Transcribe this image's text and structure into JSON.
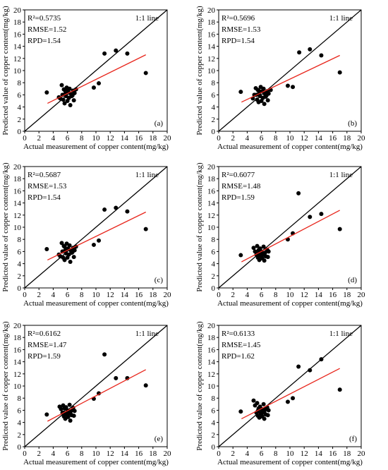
{
  "chart_data": [
    {
      "type": "scatter",
      "label": "(a)",
      "xlabel": "Actual measurement of copper content(mg/kg)",
      "ylabel": "Predicted value of copper content(mg/kg)",
      "xlim": [
        0,
        20
      ],
      "ylim": [
        0,
        20
      ],
      "xticks": [
        0,
        2,
        4,
        6,
        8,
        10,
        12,
        14,
        16,
        18,
        20
      ],
      "yticks": [
        0,
        2,
        4,
        6,
        8,
        10,
        12,
        14,
        16,
        18,
        20
      ],
      "identity_label": "1:1 line",
      "stats": {
        "r2": "R²=0.5735",
        "rmse": "RMSE=1.52",
        "rpd": "RPD=1.54"
      },
      "fit": {
        "x": [
          3.2,
          17.0
        ],
        "y": [
          4.6,
          12.6
        ]
      },
      "points": [
        [
          3.1,
          6.4
        ],
        [
          4.8,
          5.6
        ],
        [
          5.0,
          5.4
        ],
        [
          5.2,
          7.6
        ],
        [
          5.4,
          5.2
        ],
        [
          5.5,
          6.9
        ],
        [
          5.6,
          4.6
        ],
        [
          5.7,
          6.2
        ],
        [
          5.8,
          5.8
        ],
        [
          5.9,
          7.2
        ],
        [
          6.0,
          5.0
        ],
        [
          6.1,
          6.6
        ],
        [
          6.2,
          5.5
        ],
        [
          6.3,
          7.0
        ],
        [
          6.4,
          4.3
        ],
        [
          6.5,
          6.1
        ],
        [
          6.6,
          5.8
        ],
        [
          6.8,
          6.7
        ],
        [
          6.9,
          5.1
        ],
        [
          7.0,
          6.3
        ],
        [
          5.3,
          6.0
        ],
        [
          5.6,
          6.8
        ],
        [
          6.7,
          5.9
        ],
        [
          7.2,
          6.9
        ],
        [
          9.7,
          7.2
        ],
        [
          10.4,
          7.9
        ],
        [
          11.2,
          12.8
        ],
        [
          12.8,
          13.3
        ],
        [
          14.4,
          12.8
        ],
        [
          17.0,
          9.6
        ]
      ]
    },
    {
      "type": "scatter",
      "label": "(b)",
      "xlabel": "Actual measurement of copper content(mg/kg)",
      "ylabel": "Predicted value of copper content(mg/kg)",
      "xlim": [
        0,
        20
      ],
      "ylim": [
        0,
        20
      ],
      "xticks": [
        0,
        2,
        4,
        6,
        8,
        10,
        12,
        14,
        16,
        18,
        20
      ],
      "yticks": [
        0,
        2,
        4,
        6,
        8,
        10,
        12,
        14,
        16,
        18,
        20
      ],
      "identity_label": "1:1 line",
      "stats": {
        "r2": "R²=0.5696",
        "rmse": "RMSE=1.53",
        "rpd": "RPD=1.54"
      },
      "fit": {
        "x": [
          3.2,
          17.0
        ],
        "y": [
          4.8,
          12.5
        ]
      },
      "points": [
        [
          3.1,
          6.5
        ],
        [
          4.8,
          5.4
        ],
        [
          5.0,
          6.0
        ],
        [
          5.2,
          7.1
        ],
        [
          5.4,
          5.2
        ],
        [
          5.5,
          6.8
        ],
        [
          5.6,
          4.8
        ],
        [
          5.7,
          6.3
        ],
        [
          5.8,
          5.8
        ],
        [
          5.9,
          7.3
        ],
        [
          6.0,
          5.0
        ],
        [
          6.1,
          6.6
        ],
        [
          6.2,
          5.5
        ],
        [
          6.3,
          7.0
        ],
        [
          6.4,
          4.5
        ],
        [
          6.5,
          6.1
        ],
        [
          6.6,
          5.7
        ],
        [
          6.8,
          6.6
        ],
        [
          6.9,
          5.1
        ],
        [
          7.0,
          6.2
        ],
        [
          5.3,
          6.0
        ],
        [
          5.6,
          6.7
        ],
        [
          6.7,
          5.9
        ],
        [
          7.3,
          6.8
        ],
        [
          9.7,
          7.5
        ],
        [
          10.4,
          7.3
        ],
        [
          11.3,
          13.0
        ],
        [
          12.8,
          13.5
        ],
        [
          14.4,
          12.5
        ],
        [
          17.0,
          9.7
        ]
      ]
    },
    {
      "type": "scatter",
      "label": "(c)",
      "xlabel": "Actual measurement of copper content(mg/kg)",
      "ylabel": "Predicted value of copper content(mg/kg)",
      "xlim": [
        0,
        20
      ],
      "ylim": [
        0,
        20
      ],
      "xticks": [
        0,
        2,
        4,
        6,
        8,
        10,
        12,
        14,
        16,
        18,
        20
      ],
      "yticks": [
        0,
        2,
        4,
        6,
        8,
        10,
        12,
        14,
        16,
        18,
        20
      ],
      "identity_label": "1:1 line",
      "stats": {
        "r2": "R²=0.5687",
        "rmse": "RMSE=1.53",
        "rpd": "RPD=1.54"
      },
      "fit": {
        "x": [
          3.2,
          17.0
        ],
        "y": [
          4.6,
          12.5
        ]
      },
      "points": [
        [
          3.1,
          6.4
        ],
        [
          4.8,
          5.5
        ],
        [
          5.0,
          5.2
        ],
        [
          5.2,
          7.4
        ],
        [
          5.4,
          5.0
        ],
        [
          5.5,
          6.9
        ],
        [
          5.6,
          4.6
        ],
        [
          5.7,
          6.2
        ],
        [
          5.8,
          5.7
        ],
        [
          5.9,
          7.3
        ],
        [
          6.0,
          5.0
        ],
        [
          6.1,
          6.5
        ],
        [
          6.2,
          5.5
        ],
        [
          6.3,
          7.0
        ],
        [
          6.4,
          4.3
        ],
        [
          6.5,
          6.1
        ],
        [
          6.6,
          5.8
        ],
        [
          6.8,
          6.6
        ],
        [
          6.9,
          5.1
        ],
        [
          7.0,
          6.2
        ],
        [
          5.3,
          6.0
        ],
        [
          5.6,
          6.8
        ],
        [
          6.7,
          5.9
        ],
        [
          7.2,
          6.8
        ],
        [
          9.7,
          7.1
        ],
        [
          10.4,
          7.8
        ],
        [
          11.2,
          12.9
        ],
        [
          12.8,
          13.2
        ],
        [
          14.4,
          12.6
        ],
        [
          17.0,
          9.7
        ]
      ]
    },
    {
      "type": "scatter",
      "label": "(d)",
      "xlabel": "Actual measurement of copper content(mg/kg)",
      "ylabel": "Predicted value of copper content(mg/kg)",
      "xlim": [
        0,
        20
      ],
      "ylim": [
        0,
        20
      ],
      "xticks": [
        0,
        2,
        4,
        6,
        8,
        10,
        12,
        14,
        16,
        18,
        20
      ],
      "yticks": [
        0,
        2,
        4,
        6,
        8,
        10,
        12,
        14,
        16,
        18,
        20
      ],
      "identity_label": "1:1 line",
      "stats": {
        "r2": "R²=0.6077",
        "rmse": "RMSE=1.48",
        "rpd": "RPD=1.59"
      },
      "fit": {
        "x": [
          3.2,
          17.0
        ],
        "y": [
          4.3,
          12.8
        ]
      },
      "points": [
        [
          3.1,
          5.4
        ],
        [
          4.9,
          6.6
        ],
        [
          5.1,
          6.0
        ],
        [
          5.3,
          5.5
        ],
        [
          5.4,
          6.9
        ],
        [
          5.5,
          5.0
        ],
        [
          5.6,
          6.2
        ],
        [
          5.7,
          4.6
        ],
        [
          5.8,
          6.5
        ],
        [
          5.9,
          5.4
        ],
        [
          6.0,
          6.0
        ],
        [
          6.1,
          4.9
        ],
        [
          6.2,
          5.7
        ],
        [
          6.3,
          6.8
        ],
        [
          6.4,
          4.5
        ],
        [
          6.5,
          5.8
        ],
        [
          6.6,
          5.2
        ],
        [
          6.8,
          6.3
        ],
        [
          6.9,
          5.1
        ],
        [
          7.0,
          6.0
        ],
        [
          5.5,
          5.6
        ],
        [
          6.0,
          5.2
        ],
        [
          6.4,
          5.5
        ],
        [
          9.7,
          8.0
        ],
        [
          10.4,
          9.0
        ],
        [
          11.2,
          15.6
        ],
        [
          12.8,
          11.7
        ],
        [
          14.4,
          12.2
        ],
        [
          17.0,
          9.7
        ]
      ]
    },
    {
      "type": "scatter",
      "label": "(e)",
      "xlabel": "Actual measurement of copper content(mg/kg)",
      "ylabel": "Predicted value of copper content(mg/kg)",
      "xlim": [
        0,
        20
      ],
      "ylim": [
        0,
        20
      ],
      "xticks": [
        0,
        2,
        4,
        6,
        8,
        10,
        12,
        14,
        16,
        18,
        20
      ],
      "yticks": [
        0,
        2,
        4,
        6,
        8,
        10,
        12,
        14,
        16,
        18,
        20
      ],
      "identity_label": "1:1 line",
      "stats": {
        "r2": "R²=0.6162",
        "rmse": "RMSE=1.47",
        "rpd": "RPD=1.59"
      },
      "fit": {
        "x": [
          3.2,
          17.0
        ],
        "y": [
          4.2,
          12.7
        ]
      },
      "points": [
        [
          3.1,
          5.3
        ],
        [
          4.9,
          6.6
        ],
        [
          5.1,
          6.2
        ],
        [
          5.3,
          5.6
        ],
        [
          5.4,
          6.8
        ],
        [
          5.5,
          5.0
        ],
        [
          5.6,
          6.3
        ],
        [
          5.7,
          4.6
        ],
        [
          5.8,
          6.5
        ],
        [
          5.9,
          5.4
        ],
        [
          6.0,
          6.0
        ],
        [
          6.1,
          4.9
        ],
        [
          6.2,
          5.8
        ],
        [
          6.3,
          6.9
        ],
        [
          6.4,
          4.3
        ],
        [
          6.5,
          5.9
        ],
        [
          6.6,
          5.2
        ],
        [
          6.8,
          6.4
        ],
        [
          6.9,
          5.1
        ],
        [
          7.0,
          5.9
        ],
        [
          5.5,
          5.6
        ],
        [
          6.0,
          5.2
        ],
        [
          6.4,
          5.5
        ],
        [
          9.7,
          7.9
        ],
        [
          10.4,
          8.8
        ],
        [
          11.2,
          15.2
        ],
        [
          12.8,
          11.3
        ],
        [
          14.4,
          11.3
        ],
        [
          17.0,
          10.1
        ]
      ]
    },
    {
      "type": "scatter",
      "label": "(f)",
      "xlabel": "Actual measurement of copper content(mg/kg)",
      "ylabel": "Predicted value of copper content(mg/kg)",
      "xlim": [
        0,
        20
      ],
      "ylim": [
        0,
        20
      ],
      "xticks": [
        0,
        2,
        4,
        6,
        8,
        10,
        12,
        14,
        16,
        18,
        20
      ],
      "yticks": [
        0,
        2,
        4,
        6,
        8,
        10,
        12,
        14,
        16,
        18,
        20
      ],
      "identity_label": "1:1 line",
      "stats": {
        "r2": "R²=0.6133",
        "rmse": "RMSE=1.45",
        "rpd": "RPD=1.62"
      },
      "fit": {
        "x": [
          3.2,
          17.0
        ],
        "y": [
          4.6,
          12.9
        ]
      },
      "points": [
        [
          3.1,
          5.8
        ],
        [
          4.9,
          7.6
        ],
        [
          5.1,
          6.8
        ],
        [
          5.3,
          5.6
        ],
        [
          5.4,
          7.2
        ],
        [
          5.5,
          5.1
        ],
        [
          5.6,
          6.3
        ],
        [
          5.7,
          4.8
        ],
        [
          5.8,
          6.6
        ],
        [
          5.9,
          5.5
        ],
        [
          6.0,
          6.2
        ],
        [
          6.1,
          5.0
        ],
        [
          6.2,
          5.8
        ],
        [
          6.3,
          7.0
        ],
        [
          6.4,
          4.6
        ],
        [
          6.5,
          6.1
        ],
        [
          6.6,
          5.3
        ],
        [
          6.8,
          6.5
        ],
        [
          6.9,
          5.2
        ],
        [
          7.0,
          6.0
        ],
        [
          5.5,
          5.9
        ],
        [
          6.0,
          5.4
        ],
        [
          6.4,
          5.7
        ],
        [
          9.7,
          7.4
        ],
        [
          10.4,
          8.0
        ],
        [
          11.2,
          13.2
        ],
        [
          12.8,
          12.6
        ],
        [
          14.4,
          14.4
        ],
        [
          17.0,
          9.4
        ]
      ]
    }
  ]
}
